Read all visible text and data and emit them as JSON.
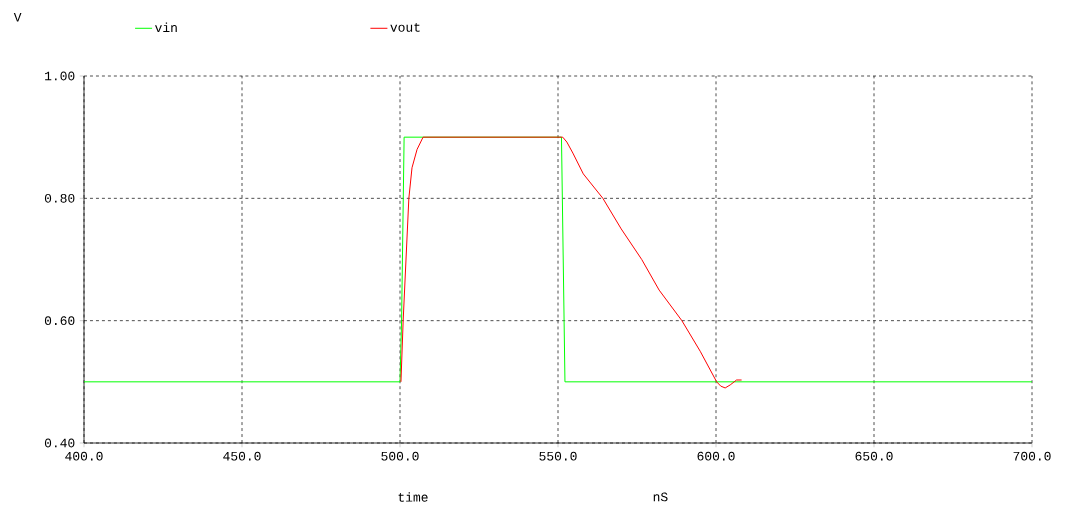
{
  "chart_data": {
    "type": "line",
    "xlabel": "time",
    "ylabel": "V",
    "annotations": [
      "nS"
    ],
    "xlim": [
      400,
      700
    ],
    "ylim": [
      0.4,
      1.0
    ],
    "xticks": [
      {
        "value": 400,
        "label": "400.0"
      },
      {
        "value": 450,
        "label": "450.0"
      },
      {
        "value": 500,
        "label": "500.0"
      },
      {
        "value": 550,
        "label": "550.0"
      },
      {
        "value": 600,
        "label": "600.0"
      },
      {
        "value": 650,
        "label": "650.0"
      },
      {
        "value": 700,
        "label": "700.0"
      }
    ],
    "yticks": [
      {
        "value": 0.4,
        "label": "0.40"
      },
      {
        "value": 0.6,
        "label": "0.60"
      },
      {
        "value": 0.8,
        "label": "0.80"
      },
      {
        "value": 1.0,
        "label": "1.00"
      }
    ],
    "grid": true,
    "legend": "top",
    "series": [
      {
        "name": "vin",
        "color": "#00ff00",
        "x": [
          400,
          500,
          500.5,
          501.3,
          551.1,
          552.2,
          700
        ],
        "values": [
          0.5,
          0.5,
          0.6,
          0.9,
          0.9,
          0.5,
          0.5
        ]
      },
      {
        "name": "vout",
        "color": "#ff0000",
        "x": [
          500.3,
          501,
          501.9,
          502.8,
          503.8,
          505.4,
          507.3,
          551.5,
          552.8,
          554.7,
          558,
          564.2,
          570,
          576.5,
          582,
          589.2,
          595,
          600.2,
          601.5,
          602.9,
          604.5,
          606.5,
          608.1
        ],
        "values": [
          0.5,
          0.6,
          0.7,
          0.8,
          0.85,
          0.88,
          0.9,
          0.9,
          0.892,
          0.874,
          0.84,
          0.8,
          0.75,
          0.7,
          0.65,
          0.6,
          0.55,
          0.5,
          0.493,
          0.49,
          0.495,
          0.503,
          0.503
        ]
      }
    ]
  }
}
